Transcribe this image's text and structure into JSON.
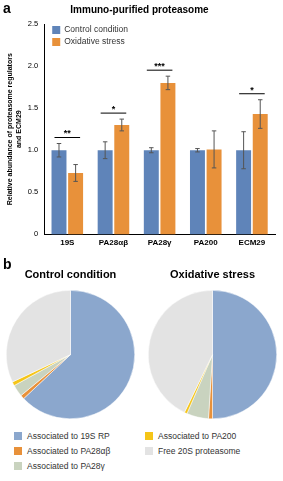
{
  "chart_data": [
    {
      "type": "bar",
      "panel": "a",
      "title": "Immuno-purified proteasome",
      "y_label": [
        "Relative abundance of proteasome regulators",
        "and ECM29"
      ],
      "categories": [
        "19S",
        "PA28αβ",
        "PA28γ",
        "PA200",
        "ECM29"
      ],
      "series": [
        {
          "name": "Control condition",
          "color": "#5f84b9",
          "values": [
            1.0,
            1.0,
            1.0,
            1.0,
            1.0
          ],
          "error": [
            0.08,
            0.1,
            0.03,
            0.02,
            0.22
          ]
        },
        {
          "name": "Oxidative stress",
          "color": "#e8913a",
          "values": [
            0.73,
            1.3,
            1.8,
            1.01,
            1.43
          ],
          "error": [
            0.1,
            0.07,
            0.08,
            0.22,
            0.17
          ]
        }
      ],
      "significance": [
        "**",
        "*",
        "***",
        null,
        "*"
      ],
      "ylim": [
        0,
        2.5
      ],
      "yticks": [
        0,
        0.5,
        {
          "value": 1,
          "label": "1.0"
        },
        1.5,
        {
          "value": 2,
          "label": "2.0"
        },
        2.5
      ],
      "legend": "upper left",
      "grid": false
    },
    {
      "type": "pie",
      "panel": "b",
      "title": "Control condition",
      "categories": [
        "Associated to 19S RP",
        "Associated to PA28αβ",
        "Associated to PA28γ",
        "Associated to PA200",
        "Free 20S proteasome"
      ],
      "values": [
        63,
        1,
        3,
        1,
        32
      ],
      "colors": [
        "#8ba7cd",
        "#e8913a",
        "#c9d3bf",
        "#f5c518",
        "#e3e3e3"
      ]
    },
    {
      "type": "pie",
      "title": "Oxidative stress",
      "categories": [
        "Associated to 19S RP",
        "Associated to PA28αβ",
        "Associated to PA28γ",
        "Associated to PA200",
        "Free 20S proteasome"
      ],
      "values": [
        50,
        1,
        5.5,
        0.7,
        42.8
      ],
      "colors": [
        "#8ba7cd",
        "#e8913a",
        "#c9d3bf",
        "#f5c518",
        "#e3e3e3"
      ]
    }
  ]
}
